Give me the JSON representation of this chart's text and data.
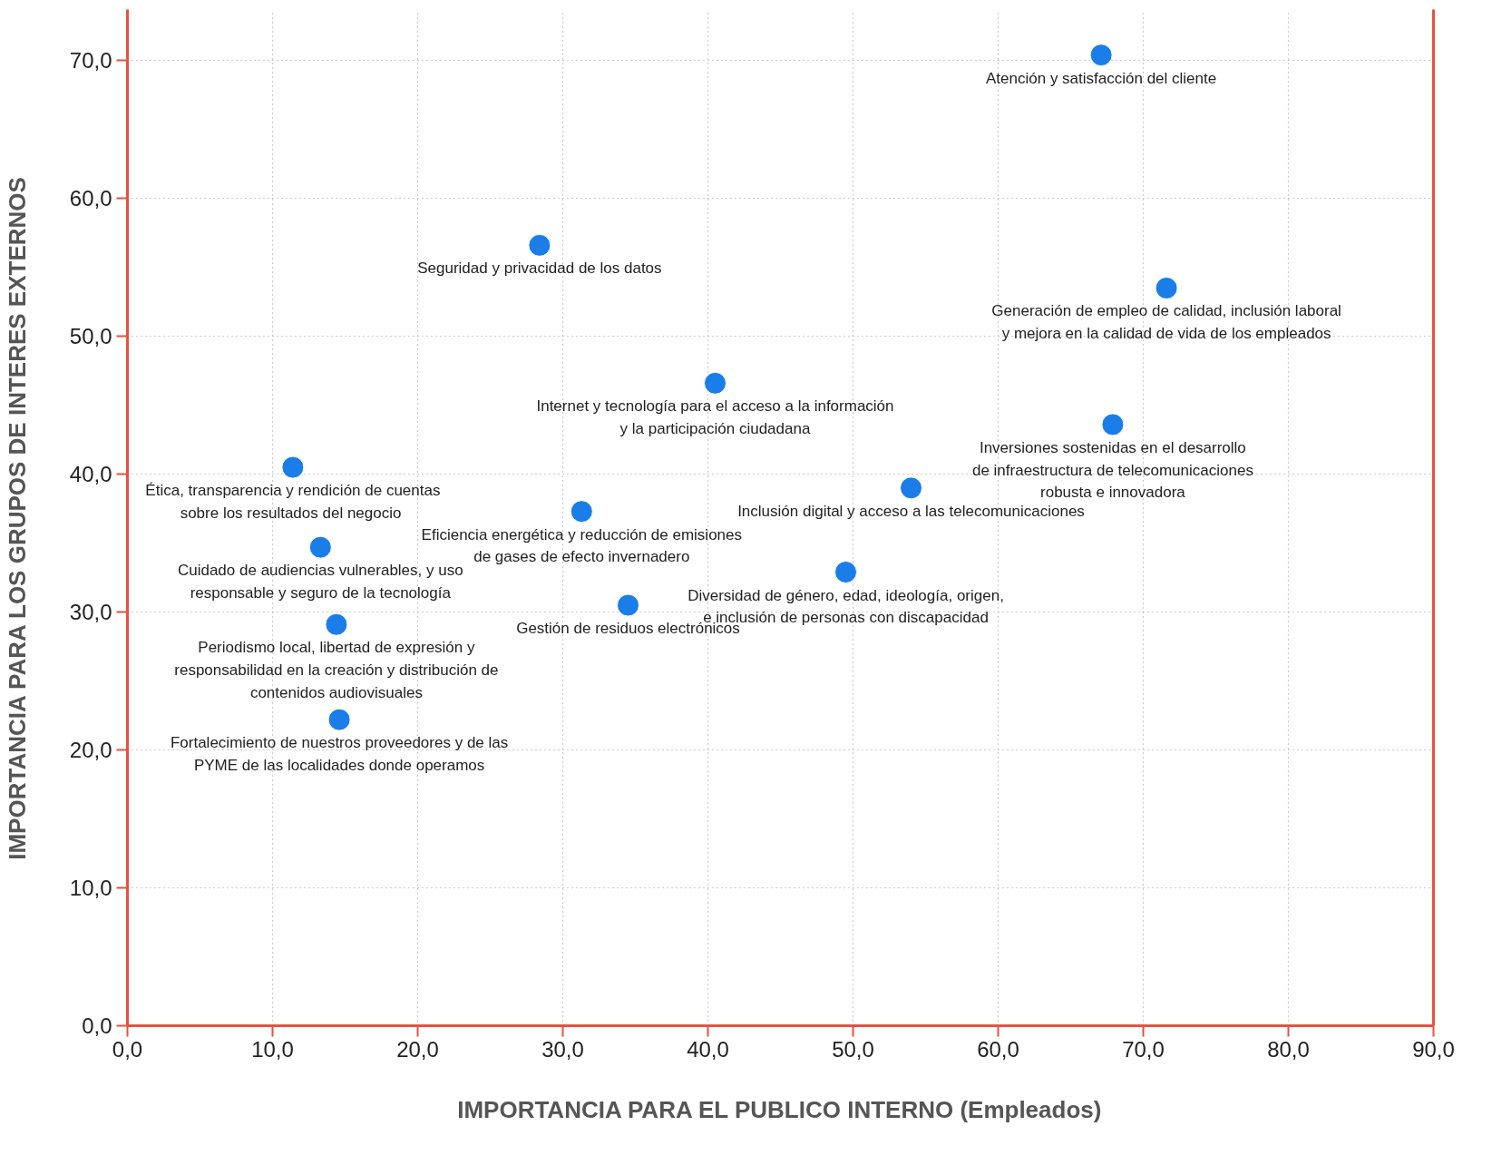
{
  "chart_data": {
    "type": "scatter",
    "xlabel": "IMPORTANCIA PARA EL PUBLICO INTERNO (Empleados)",
    "ylabel": "IMPORTANCIA PARA LOS GRUPOS DE INTERES EXTERNOS",
    "x": [
      67.1,
      28.4,
      71.6,
      40.5,
      67.9,
      11.4,
      54.0,
      31.3,
      13.3,
      49.5,
      34.5,
      14.4,
      14.6
    ],
    "values": [
      70.4,
      56.6,
      53.5,
      46.6,
      43.6,
      40.5,
      39.0,
      37.3,
      34.7,
      32.9,
      30.5,
      29.1,
      22.2
    ],
    "color": "#1a7de8",
    "marker": "circle",
    "grid": true,
    "xlim": [
      0,
      90
    ],
    "ylim": [
      0,
      73.7
    ],
    "xticks": [
      {
        "value": 0,
        "label": "0,0"
      },
      {
        "value": 10,
        "label": "10,0"
      },
      {
        "value": 20,
        "label": "20,0"
      },
      {
        "value": 30,
        "label": "30,0"
      },
      {
        "value": 40,
        "label": "40,0"
      },
      {
        "value": 50,
        "label": "50,0"
      },
      {
        "value": 60,
        "label": "60,0"
      },
      {
        "value": 70,
        "label": "70,0"
      },
      {
        "value": 80,
        "label": "80,0"
      },
      {
        "value": 90,
        "label": "90,0"
      }
    ],
    "yticks": [
      {
        "value": 0,
        "label": "0,0"
      },
      {
        "value": 10,
        "label": "10,0"
      },
      {
        "value": 20,
        "label": "20,0"
      },
      {
        "value": 30,
        "label": "30,0"
      },
      {
        "value": 40,
        "label": "40,0"
      },
      {
        "value": 50,
        "label": "50,0"
      },
      {
        "value": 60,
        "label": "60,0"
      },
      {
        "value": 70,
        "label": "70,0"
      }
    ],
    "annotations": [
      {
        "text": "Atención y satisfacción del cliente",
        "x": 67.1,
        "y": 70.4
      },
      {
        "text": "Seguridad y privacidad de los datos",
        "x": 28.4,
        "y": 56.6
      },
      {
        "text": "Generación de empleo de calidad, inclusión laboral\ny mejora en la calidad de vida de los empleados",
        "x": 71.6,
        "y": 53.5
      },
      {
        "text": "Internet y tecnología para el acceso a la información\ny la participación ciudadana",
        "x": 40.5,
        "y": 46.6
      },
      {
        "text": "Inversiones sostenidas en el desarrollo\nde infraestructura de telecomunicaciones\nrobusta e innovadora",
        "x": 67.9,
        "y": 43.6
      },
      {
        "text": "Ética, transparencia y rendición de cuentas\nsobre los  resultados del negocio",
        "x": 11.4,
        "y": 40.5
      },
      {
        "text": "Inclusión digital y acceso a las telecomunicaciones",
        "x": 54.0,
        "y": 39.0
      },
      {
        "text": "Eficiencia energética y reducción de emisiones\nde gases de efecto invernadero",
        "x": 31.3,
        "y": 37.3
      },
      {
        "text": "Cuidado de audiencias vulnerables, y uso\nresponsable y seguro de la tecnología",
        "x": 13.3,
        "y": 34.7
      },
      {
        "text": "Diversidad de género, edad, ideología, origen,\ne inclusión de personas con discapacidad",
        "x": 49.5,
        "y": 32.9
      },
      {
        "text": "Gestión de residuos electrónicos",
        "x": 34.5,
        "y": 30.5
      },
      {
        "text": "Periodismo local, libertad de expresión y\nresponsabilidad en la creación y distribución de\ncontenidos audiovisuales",
        "x": 14.4,
        "y": 29.1
      },
      {
        "text": "Fortalecimiento de nuestros proveedores y de las\nPYME de las localidades donde operamos",
        "x": 14.6,
        "y": 22.2
      }
    ]
  }
}
